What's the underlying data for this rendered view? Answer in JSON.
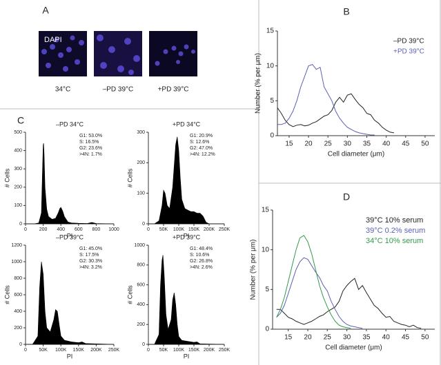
{
  "panel_letters": [
    "A",
    "B",
    "C",
    "D"
  ],
  "panel_a": {
    "overlay": "DAPI",
    "captions": [
      "34°C",
      "–PD 39°C",
      "+PD 39°C"
    ]
  },
  "chart_data": [
    {
      "type": "line",
      "xlabel": "Cell diameter (μm)",
      "ylabel": "Number (% per μm)",
      "xlim": [
        12,
        52.5
      ],
      "xticks": [
        15,
        20,
        25,
        30,
        35,
        40,
        45,
        50
      ],
      "ylim": [
        0,
        15
      ],
      "yticks": [
        0,
        5,
        10,
        15
      ],
      "x": [
        12,
        13,
        14,
        15,
        16,
        17,
        18,
        19,
        20,
        21,
        22,
        23,
        24,
        25,
        26,
        27,
        28,
        29,
        30,
        31,
        32,
        33,
        34,
        35,
        36,
        37,
        38,
        39,
        40,
        41,
        42
      ],
      "series": [
        {
          "name": "–PD 39°C",
          "color": "#222222",
          "values": [
            4.0,
            3.2,
            2.2,
            1.6,
            1.3,
            1.5,
            1.6,
            1.4,
            1.5,
            1.8,
            2.0,
            2.4,
            2.8,
            3.0,
            3.6,
            4.8,
            5.5,
            4.8,
            5.8,
            6.0,
            5.2,
            4.5,
            4.0,
            3.2,
            3.0,
            2.2,
            1.8,
            1.2,
            0.8,
            0.5,
            0.4
          ]
        },
        {
          "name": "+PD 39°C",
          "color": "#5b5fb5",
          "values": [
            1.6,
            1.6,
            1.8,
            2.5,
            3.5,
            5.0,
            7.0,
            8.5,
            10.0,
            10.2,
            9.5,
            9.8,
            7.0,
            6.0,
            5.0,
            3.5,
            2.5,
            1.8,
            1.2,
            0.9,
            0.6,
            0.4,
            0.3,
            0.2,
            0.1,
            0.1,
            null,
            null,
            null,
            null,
            null
          ]
        }
      ]
    },
    {
      "type": "area",
      "title": "–PD 34°C",
      "xlabel": "PI",
      "ylabel": "# Cells",
      "color": "#000000",
      "stats": [
        "G1:  53.0%",
        "S:  16.5%",
        "G2:  23.6%",
        ">4N:  1.7%"
      ],
      "xlim": [
        0,
        1000
      ],
      "xticks": [
        0,
        200,
        400,
        600,
        800,
        1000
      ],
      "ylim": [
        0,
        500
      ],
      "yticks": [
        0,
        100,
        200,
        300,
        400,
        500
      ],
      "x": [
        0,
        100,
        150,
        180,
        190,
        200,
        205,
        210,
        220,
        240,
        260,
        300,
        340,
        370,
        390,
        400,
        410,
        420,
        440,
        480,
        520,
        600,
        700,
        750,
        800,
        1000
      ],
      "values": [
        0,
        0,
        5,
        60,
        250,
        430,
        440,
        380,
        200,
        80,
        40,
        25,
        30,
        60,
        85,
        90,
        80,
        70,
        40,
        10,
        5,
        3,
        2,
        8,
        2,
        0
      ]
    },
    {
      "type": "area",
      "title": "+PD 34°C",
      "xlabel": "PI",
      "ylabel": "# Cells",
      "color": "#000000",
      "stats": [
        "G1:  20.9%",
        "S:  12.6%",
        "G2:  47.0%",
        ">4N:  12.2%"
      ],
      "xlim": [
        0,
        250000
      ],
      "xticks": [
        0,
        {
          "value": 50000,
          "label": "50K"
        },
        {
          "value": 100000,
          "label": "100K"
        },
        {
          "value": 150000,
          "label": "150K"
        },
        {
          "value": 200000,
          "label": "200K"
        },
        {
          "value": 250000,
          "label": "250K"
        }
      ],
      "ylim": [
        0,
        300
      ],
      "yticks": [
        0,
        100,
        200,
        300
      ],
      "x": [
        0,
        20000,
        35000,
        45000,
        50000,
        55000,
        62000,
        70000,
        80000,
        90000,
        95000,
        100000,
        105000,
        110000,
        120000,
        130000,
        140000,
        150000,
        160000,
        170000,
        180000,
        190000,
        200000,
        250000
      ],
      "values": [
        0,
        0,
        10,
        60,
        110,
        100,
        60,
        50,
        120,
        260,
        285,
        240,
        150,
        80,
        50,
        45,
        40,
        40,
        35,
        35,
        25,
        5,
        0,
        0
      ]
    },
    {
      "type": "area",
      "title": "–PD 39°C",
      "xlabel": "PI",
      "ylabel": "# Cells",
      "color": "#000000",
      "stats": [
        "G1:  45.0%",
        "S:  17.5%",
        "G2:  30.3%",
        ">4N:  3.2%"
      ],
      "xlim": [
        0,
        250000
      ],
      "xticks": [
        0,
        {
          "value": 50000,
          "label": "50K"
        },
        {
          "value": 100000,
          "label": "100K"
        },
        {
          "value": 150000,
          "label": "150K"
        },
        {
          "value": 200000,
          "label": "200K"
        },
        {
          "value": 250000,
          "label": "250K"
        }
      ],
      "ylim": [
        0,
        1200
      ],
      "yticks": [
        0,
        200,
        400,
        600,
        800,
        1000,
        1200
      ],
      "x": [
        0,
        20000,
        35000,
        40000,
        45000,
        50000,
        55000,
        60000,
        70000,
        80000,
        85000,
        90000,
        95000,
        100000,
        110000,
        130000,
        150000,
        160000,
        170000,
        250000
      ],
      "values": [
        0,
        0,
        100,
        700,
        1000,
        850,
        400,
        200,
        150,
        300,
        420,
        400,
        250,
        100,
        50,
        30,
        20,
        30,
        10,
        0
      ]
    },
    {
      "type": "area",
      "title": "+PD 39°C",
      "xlabel": "PI",
      "ylabel": "# Cells",
      "color": "#000000",
      "stats": [
        "G1:  48.4%",
        "S:  10.6%",
        "G2:  26.8%",
        ">4N:  2.6%"
      ],
      "xlim": [
        0,
        250000
      ],
      "xticks": [
        0,
        {
          "value": 50000,
          "label": "50K"
        },
        {
          "value": 100000,
          "label": "100K"
        },
        {
          "value": 150000,
          "label": "150K"
        },
        {
          "value": 200000,
          "label": "200K"
        },
        {
          "value": 250000,
          "label": "250K"
        }
      ],
      "ylim": [
        0,
        1000
      ],
      "yticks": [
        0,
        200,
        400,
        600,
        800,
        1000
      ],
      "x": [
        0,
        20000,
        35000,
        40000,
        45000,
        48000,
        52000,
        58000,
        65000,
        75000,
        80000,
        85000,
        90000,
        95000,
        100000,
        110000,
        130000,
        150000,
        160000,
        170000,
        250000
      ],
      "values": [
        0,
        0,
        100,
        600,
        850,
        900,
        700,
        300,
        150,
        250,
        450,
        520,
        400,
        200,
        80,
        40,
        30,
        20,
        25,
        5,
        0
      ]
    },
    {
      "type": "line",
      "xlabel": "Cell diameter (μm)",
      "ylabel": "Number (% per μm)",
      "xlim": [
        11,
        52.5
      ],
      "xticks": [
        15,
        20,
        25,
        30,
        35,
        40,
        45,
        50
      ],
      "ylim": [
        0,
        15
      ],
      "yticks": [
        0,
        5,
        10,
        15
      ],
      "x": [
        12,
        13,
        14,
        15,
        16,
        17,
        18,
        19,
        20,
        21,
        22,
        23,
        24,
        25,
        26,
        27,
        28,
        29,
        30,
        31,
        32,
        33,
        34,
        35,
        36,
        37,
        38,
        39,
        40,
        41,
        42,
        43,
        44,
        45,
        46,
        47,
        48,
        49
      ],
      "series": [
        {
          "name": "39°C 10% serum",
          "color": "#222222",
          "values": [
            2.5,
            2.5,
            2.0,
            1.5,
            1.3,
            1.0,
            0.8,
            0.6,
            0.8,
            1.0,
            1.3,
            1.6,
            1.8,
            2.2,
            2.5,
            2.8,
            3.5,
            4.8,
            5.5,
            6.0,
            6.4,
            5.0,
            5.5,
            4.6,
            3.8,
            3.0,
            2.6,
            2.0,
            1.5,
            1.6,
            1.0,
            0.8,
            0.6,
            0.5,
            0.3,
            0.5,
            0.2,
            0.1
          ]
        },
        {
          "name": "39°C 0.2% serum",
          "color": "#5b5fb5",
          "values": [
            1.5,
            2.0,
            3.0,
            4.5,
            6.0,
            7.5,
            8.5,
            9.0,
            8.8,
            8.0,
            7.2,
            6.5,
            5.5,
            4.8,
            3.5,
            2.5,
            1.6,
            1.0,
            0.6,
            0.4,
            0.3,
            0.2,
            0.1,
            null,
            null,
            null,
            null,
            null,
            null,
            null,
            null,
            null,
            null,
            null,
            null,
            null,
            null,
            null
          ]
        },
        {
          "name": "34°C 10% serum",
          "color": "#2e9a4a",
          "values": [
            1.5,
            2.5,
            4.0,
            6.0,
            8.0,
            10.0,
            11.5,
            11.8,
            11.0,
            9.5,
            7.5,
            5.5,
            4.0,
            2.8,
            1.8,
            1.0,
            0.5,
            0.3,
            0.2,
            0.1,
            null,
            null,
            null,
            null,
            null,
            null,
            null,
            null,
            null,
            null,
            null,
            null,
            null,
            null,
            null,
            null,
            null,
            null
          ]
        }
      ]
    }
  ]
}
